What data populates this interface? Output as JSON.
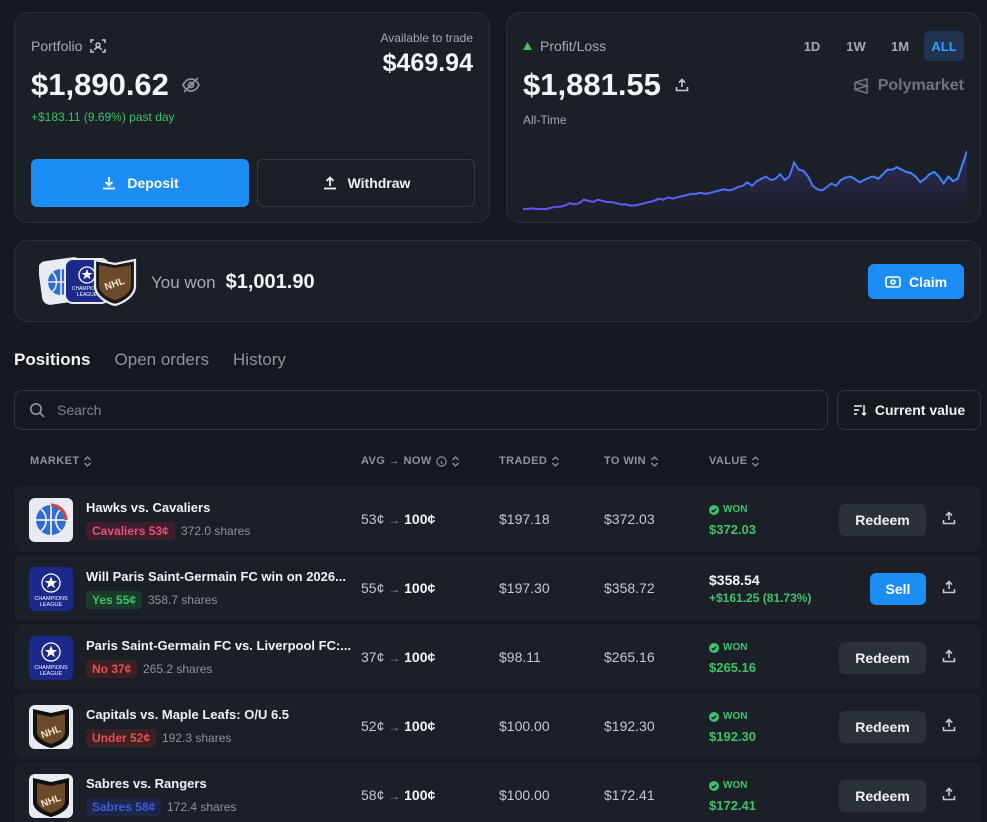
{
  "portfolio": {
    "label": "Portfolio",
    "value": "$1,890.62",
    "change": "+$183.11 (9.69%) past day",
    "available_label": "Available to trade",
    "available_value": "$469.94",
    "deposit_label": "Deposit",
    "withdraw_label": "Withdraw"
  },
  "pnl": {
    "label": "Profit/Loss",
    "value": "$1,881.55",
    "period": "All-Time",
    "brand": "Polymarket",
    "ranges": [
      "1D",
      "1W",
      "1M",
      "ALL"
    ],
    "active_range": "ALL",
    "accent": "#3ec26a"
  },
  "chart_data": {
    "type": "line",
    "title": "",
    "xlabel": "",
    "ylabel": "",
    "values": [
      10,
      10,
      10.5,
      10,
      10,
      10,
      11,
      12,
      12,
      13,
      15,
      14,
      15,
      18,
      17,
      16,
      18,
      17,
      16,
      16,
      15,
      14,
      14,
      13,
      13,
      14,
      15,
      16,
      17,
      19,
      18,
      20,
      19,
      20,
      21,
      22,
      23,
      23,
      24,
      23,
      24,
      25,
      26,
      27,
      26,
      27,
      29,
      30,
      33,
      30,
      34,
      36,
      38,
      35,
      36,
      40,
      35,
      38,
      50,
      44,
      43,
      38,
      30,
      27,
      26,
      29,
      32,
      30,
      35,
      37,
      38,
      36,
      33,
      35,
      37,
      38,
      36,
      40,
      44,
      44,
      46,
      44,
      42,
      41,
      38,
      33,
      36,
      40,
      42,
      38,
      32,
      38,
      34,
      36,
      48,
      60
    ],
    "color_start": "#6b4cf0",
    "color_end": "#3b8cff"
  },
  "won": {
    "label": "You won",
    "amount": "$1,001.90",
    "claim_label": "Claim"
  },
  "tabs": [
    "Positions",
    "Open orders",
    "History"
  ],
  "active_tab": "Positions",
  "search": {
    "placeholder": "Search"
  },
  "sort": {
    "label": "Current value"
  },
  "columns": {
    "market": "MARKET",
    "avg_now": "AVG → NOW",
    "traded": "TRADED",
    "to_win": "TO WIN",
    "value": "VALUE"
  },
  "positions": [
    {
      "title": "Hawks vs. Cavaliers",
      "outcome": "Cavaliers 53¢",
      "outcome_color": "#e0527a",
      "outcome_bg": "#3d1e2a",
      "shares": "372.0 shares",
      "avg": "53¢",
      "now": "100¢",
      "traded": "$197.18",
      "to_win": "$372.03",
      "status": "WON",
      "value": "$372.03",
      "action": "Redeem",
      "icon": "basketball-icon"
    },
    {
      "title": "Will Paris Saint-Germain FC win on 2026...",
      "outcome": "Yes 55¢",
      "outcome_color": "#3ec26a",
      "outcome_bg": "#1a3a2a",
      "shares": "358.7 shares",
      "avg": "55¢",
      "now": "100¢",
      "traded": "$197.30",
      "to_win": "$358.72",
      "status": "",
      "value": "$358.54",
      "value_change": "+$161.25 (81.73%)",
      "action": "Sell",
      "icon": "champions-league-icon"
    },
    {
      "title": "Paris Saint-Germain FC vs. Liverpool FC:...",
      "outcome": "No 37¢",
      "outcome_color": "#e05252",
      "outcome_bg": "#3d2024",
      "shares": "265.2 shares",
      "avg": "37¢",
      "now": "100¢",
      "traded": "$98.11",
      "to_win": "$265.16",
      "status": "WON",
      "value": "$265.16",
      "action": "Redeem",
      "icon": "champions-league-icon"
    },
    {
      "title": "Capitals vs. Maple Leafs: O/U 6.5",
      "outcome": "Under 52¢",
      "outcome_color": "#e05252",
      "outcome_bg": "#3d2024",
      "shares": "192.3 shares",
      "avg": "52¢",
      "now": "100¢",
      "traded": "$100.00",
      "to_win": "$192.30",
      "status": "WON",
      "value": "$192.30",
      "action": "Redeem",
      "icon": "nhl-icon"
    },
    {
      "title": "Sabres vs. Rangers",
      "outcome": "Sabres 58¢",
      "outcome_color": "#3b5bdb",
      "outcome_bg": "#1e2546",
      "shares": "172.4 shares",
      "avg": "58¢",
      "now": "100¢",
      "traded": "$100.00",
      "to_win": "$172.41",
      "status": "WON",
      "value": "$172.41",
      "action": "Redeem",
      "icon": "nhl-icon"
    }
  ]
}
